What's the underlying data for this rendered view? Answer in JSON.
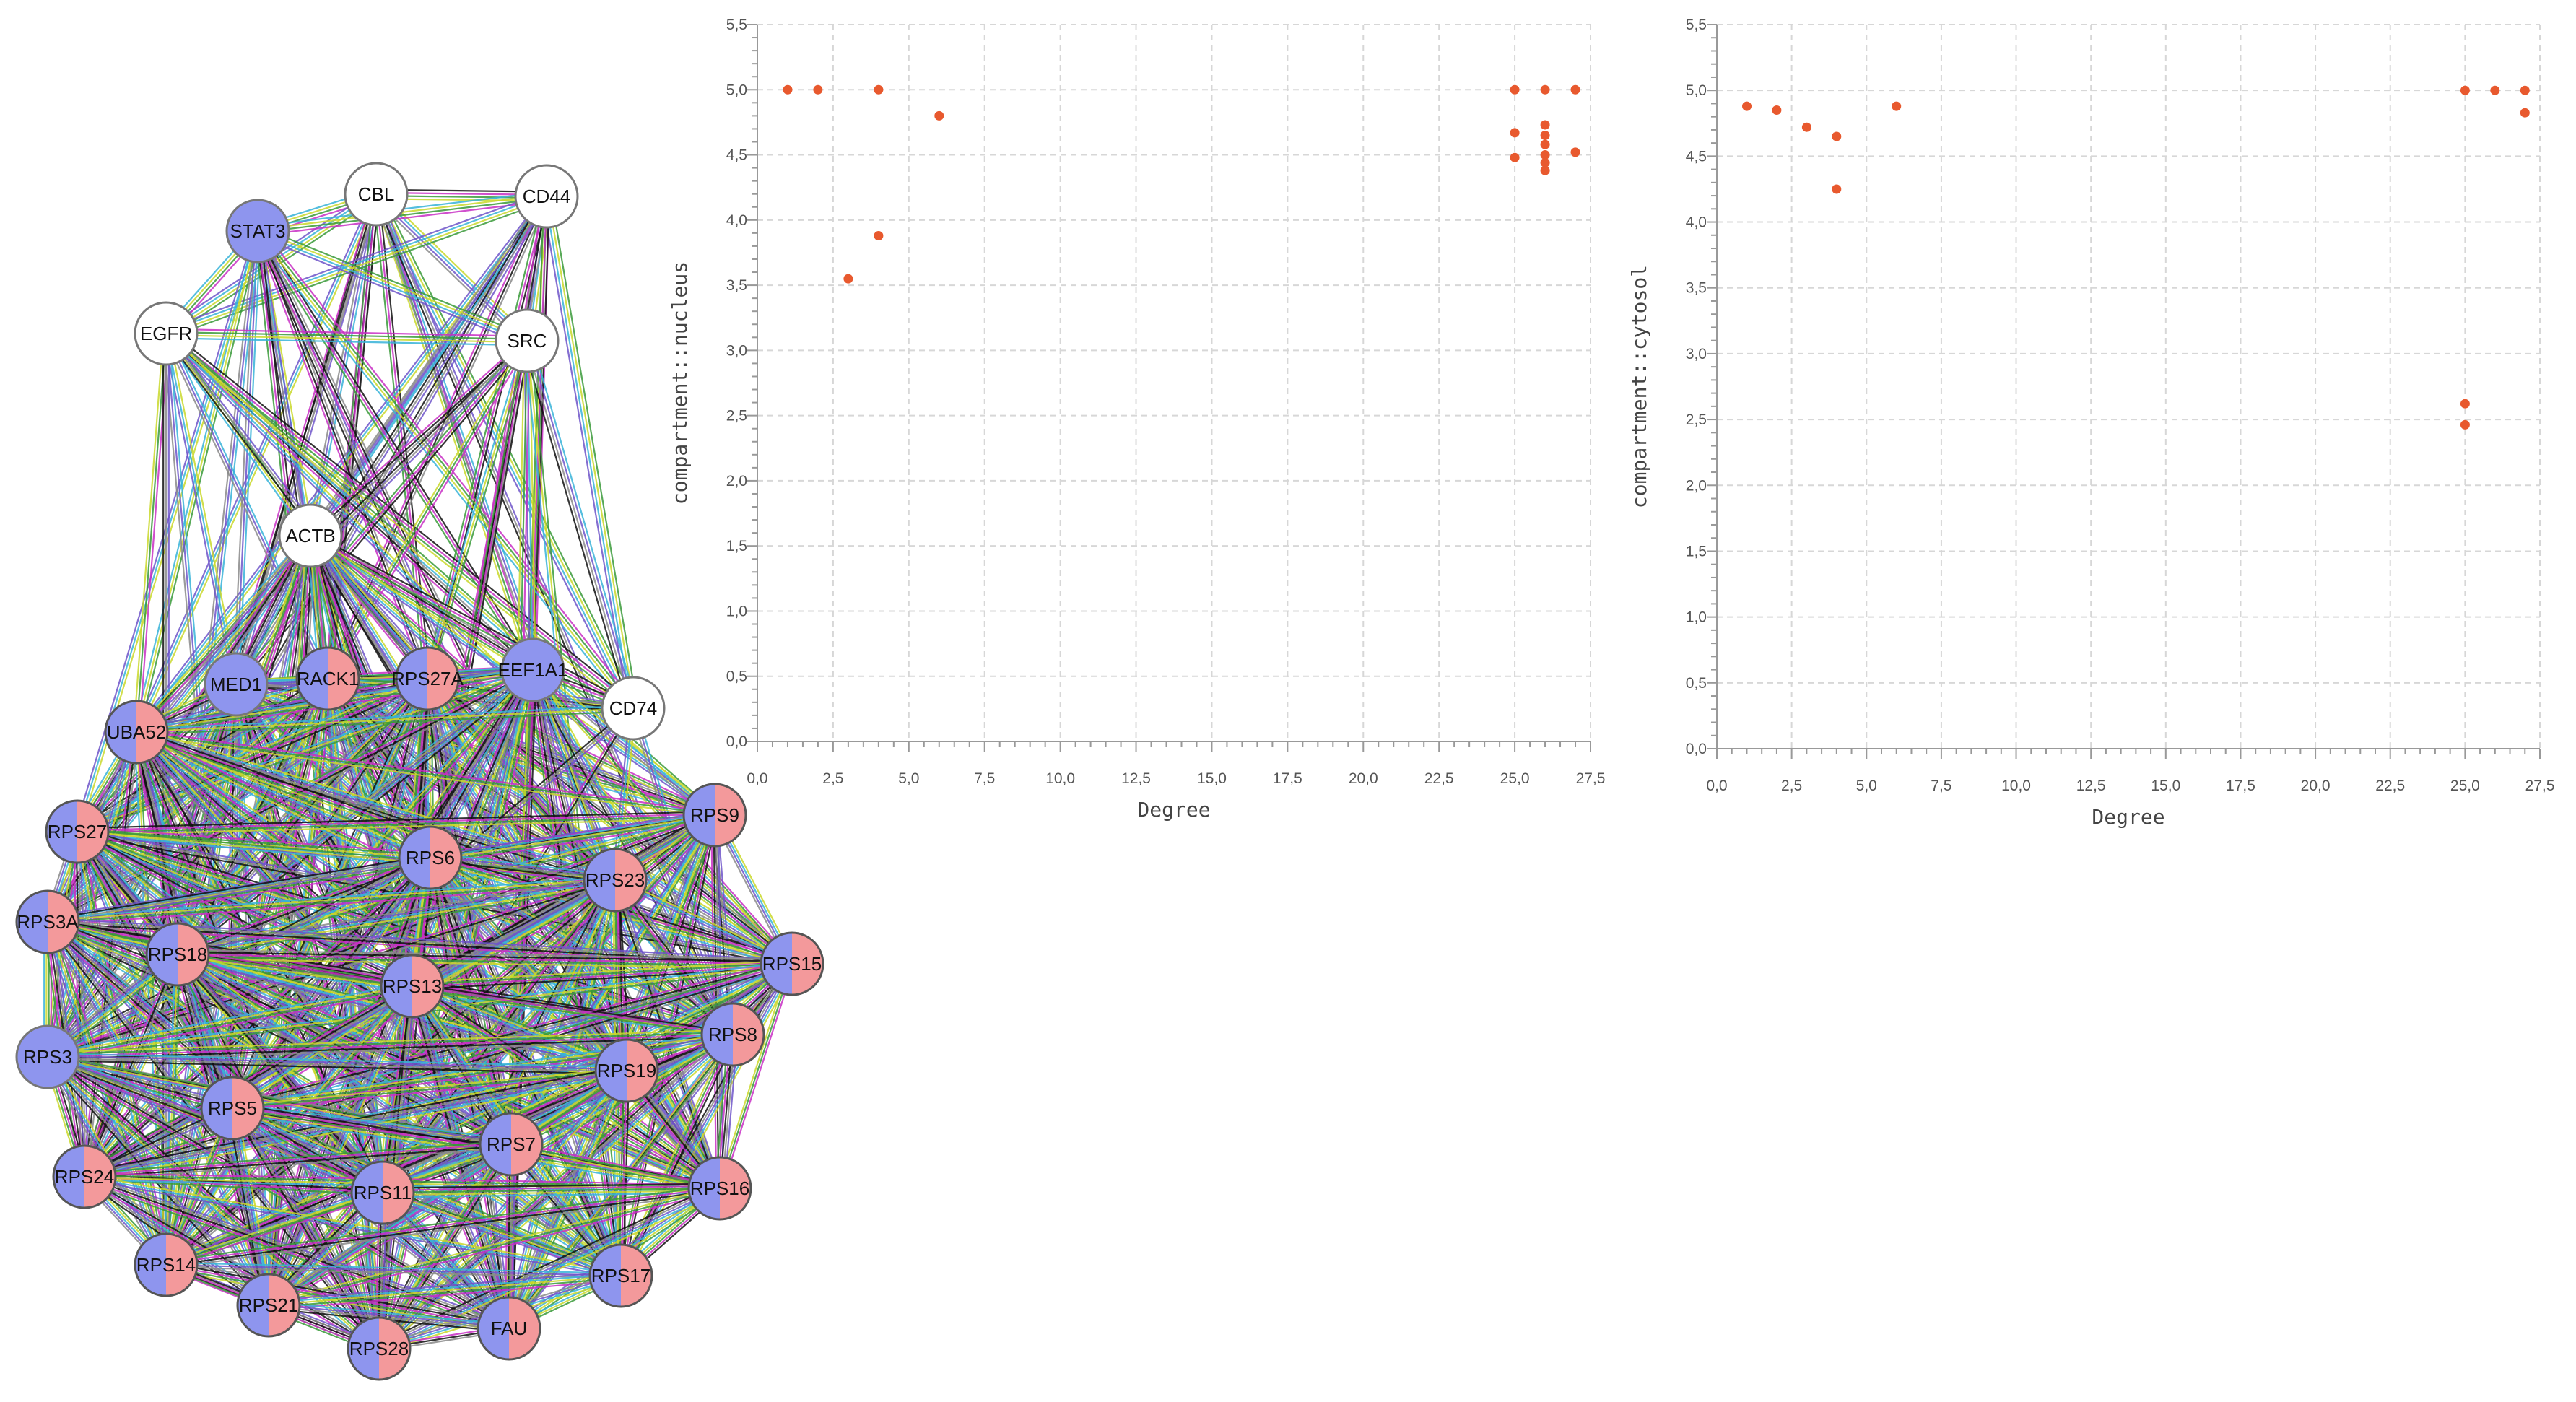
{
  "colors": {
    "half_a": "#8e95ee",
    "half_b": "#f3999b",
    "node_white": "#ffffff",
    "dot": "#e8592e",
    "grid": "#d7d7d7",
    "edge_palette": [
      "#111111",
      "#c82fc4",
      "#3a9a3a",
      "#c9d82a",
      "#37b3d8",
      "#6e55c9",
      "#8a8a8a"
    ]
  },
  "network": {
    "nodes": [
      {
        "id": "CBL",
        "color": "white"
      },
      {
        "id": "CD44",
        "color": "white"
      },
      {
        "id": "STAT3",
        "color": "blue"
      },
      {
        "id": "EGFR",
        "color": "white"
      },
      {
        "id": "SRC",
        "color": "white"
      },
      {
        "id": "ACTB",
        "color": "white"
      },
      {
        "id": "MED1",
        "color": "blue"
      },
      {
        "id": "RACK1",
        "color": "split"
      },
      {
        "id": "RPS27A",
        "color": "split"
      },
      {
        "id": "EEF1A1",
        "color": "blue"
      },
      {
        "id": "CD74",
        "color": "white"
      },
      {
        "id": "UBA52",
        "color": "split"
      },
      {
        "id": "RPS27",
        "color": "split"
      },
      {
        "id": "RPS9",
        "color": "split"
      },
      {
        "id": "RPS6",
        "color": "split"
      },
      {
        "id": "RPS23",
        "color": "split"
      },
      {
        "id": "RPS3A",
        "color": "split"
      },
      {
        "id": "RPS18",
        "color": "split"
      },
      {
        "id": "RPS15",
        "color": "split"
      },
      {
        "id": "RPS13",
        "color": "split"
      },
      {
        "id": "RPS8",
        "color": "split"
      },
      {
        "id": "RPS3",
        "color": "blue"
      },
      {
        "id": "RPS19",
        "color": "split"
      },
      {
        "id": "RPS5",
        "color": "split"
      },
      {
        "id": "RPS7",
        "color": "split"
      },
      {
        "id": "RPS24",
        "color": "split"
      },
      {
        "id": "RPS11",
        "color": "split"
      },
      {
        "id": "RPS16",
        "color": "split"
      },
      {
        "id": "RPS14",
        "color": "split"
      },
      {
        "id": "RPS17",
        "color": "split"
      },
      {
        "id": "RPS21",
        "color": "split"
      },
      {
        "id": "FAU",
        "color": "split"
      },
      {
        "id": "RPS28",
        "color": "split"
      }
    ]
  },
  "chart_data": [
    {
      "type": "scatter",
      "title": "",
      "xlabel": "Degree",
      "ylabel": "compartment::nucleus",
      "xlim": [
        0,
        27.5
      ],
      "ylim": [
        0,
        5.5
      ],
      "grid": true,
      "x_ticks": [
        "0,0",
        "2,5",
        "5,0",
        "7,5",
        "10,0",
        "12,5",
        "15,0",
        "17,5",
        "20,0",
        "22,5",
        "25,0",
        "27,5"
      ],
      "y_ticks": [
        "0,0",
        "0,5",
        "1,0",
        "1,5",
        "2,0",
        "2,5",
        "3,0",
        "3,5",
        "4,0",
        "4,5",
        "5,0",
        "5,5"
      ],
      "points": [
        {
          "x": 1,
          "y": 5.0
        },
        {
          "x": 2,
          "y": 5.0
        },
        {
          "x": 4,
          "y": 5.0
        },
        {
          "x": 6,
          "y": 4.8
        },
        {
          "x": 4,
          "y": 3.88
        },
        {
          "x": 3,
          "y": 3.55
        },
        {
          "x": 25,
          "y": 5.0
        },
        {
          "x": 25,
          "y": 4.67
        },
        {
          "x": 25,
          "y": 4.48
        },
        {
          "x": 26,
          "y": 5.0
        },
        {
          "x": 26,
          "y": 4.73
        },
        {
          "x": 26,
          "y": 4.65
        },
        {
          "x": 26,
          "y": 4.58
        },
        {
          "x": 26,
          "y": 4.5
        },
        {
          "x": 26,
          "y": 4.44
        },
        {
          "x": 26,
          "y": 4.38
        },
        {
          "x": 27,
          "y": 5.0
        },
        {
          "x": 27,
          "y": 4.52
        }
      ]
    },
    {
      "type": "scatter",
      "title": "",
      "xlabel": "Degree",
      "ylabel": "compartment::cytosol",
      "xlim": [
        0,
        27.5
      ],
      "ylim": [
        0,
        5.5
      ],
      "grid": true,
      "x_ticks": [
        "0,0",
        "2,5",
        "5,0",
        "7,5",
        "10,0",
        "12,5",
        "15,0",
        "17,5",
        "20,0",
        "22,5",
        "25,0",
        "27,5"
      ],
      "y_ticks": [
        "0,0",
        "0,5",
        "1,0",
        "1,5",
        "2,0",
        "2,5",
        "3,0",
        "3,5",
        "4,0",
        "4,5",
        "5,0",
        "5,5"
      ],
      "points": [
        {
          "x": 1,
          "y": 4.88
        },
        {
          "x": 2,
          "y": 4.85
        },
        {
          "x": 3,
          "y": 4.72
        },
        {
          "x": 4,
          "y": 4.65
        },
        {
          "x": 4,
          "y": 4.25
        },
        {
          "x": 6,
          "y": 4.88
        },
        {
          "x": 25,
          "y": 5.0
        },
        {
          "x": 25,
          "y": 2.62
        },
        {
          "x": 25,
          "y": 2.46
        },
        {
          "x": 26,
          "y": 5.0
        },
        {
          "x": 27,
          "y": 5.0
        },
        {
          "x": 27,
          "y": 4.83
        }
      ]
    }
  ]
}
